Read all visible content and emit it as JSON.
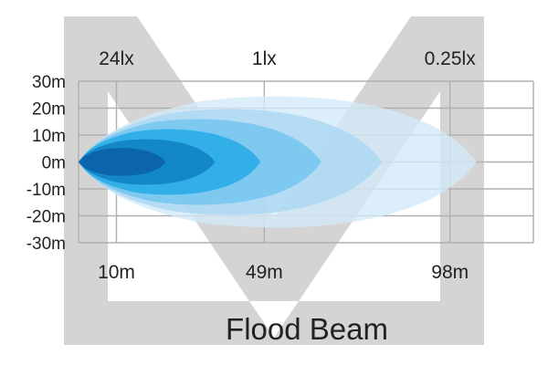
{
  "chart_data": {
    "type": "area",
    "title": "Flood Beam",
    "y_unit": "m",
    "y_ticks": [
      30,
      20,
      10,
      0,
      -10,
      -20,
      -30
    ],
    "y_tick_labels": [
      "30m",
      "20m",
      "10m",
      "0m",
      "-10m",
      "-20m",
      "-30m"
    ],
    "ylim": [
      -30,
      30
    ],
    "xlim": [
      0,
      120
    ],
    "grid": true,
    "lux_labels": [
      {
        "text": "24lx",
        "distance": 10
      },
      {
        "text": "1lx",
        "distance": 49
      },
      {
        "text": "0.25lx",
        "distance": 98
      }
    ],
    "distance_labels": [
      {
        "text": "10m",
        "distance": 10
      },
      {
        "text": "49m",
        "distance": 49
      },
      {
        "text": "98m",
        "distance": 98
      }
    ],
    "beam_contours": [
      {
        "reach": 105,
        "half_width": 26,
        "color": "#d2e9f9"
      },
      {
        "reach": 80,
        "half_width": 21,
        "color": "#a9d7f4"
      },
      {
        "reach": 64,
        "half_width": 17,
        "color": "#6ec4ee"
      },
      {
        "reach": 48,
        "half_width": 13,
        "color": "#1ea8e6"
      },
      {
        "reach": 36,
        "half_width": 9,
        "color": "#0b7cbf"
      },
      {
        "reach": 23,
        "half_width": 5.5,
        "color": "#0a5aa2"
      }
    ],
    "watermark_color": "#d4d4d4"
  }
}
